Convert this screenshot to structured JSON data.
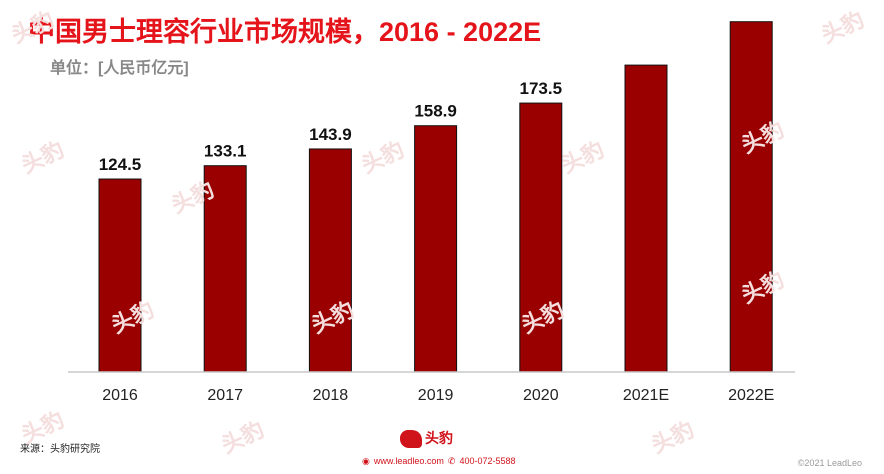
{
  "header": {
    "title": "中国男士理容行业市场规模，2016 - 2022E",
    "unit": "单位：[人民币亿元]"
  },
  "chart_data": {
    "type": "bar",
    "title": "中国男士理容行业市场规模，2016 - 2022E",
    "ylabel": "单位：[人民币亿元]",
    "categories": [
      "2016",
      "2017",
      "2018",
      "2019",
      "2020",
      "2021E",
      "2022E"
    ],
    "values": [
      124.5,
      133.1,
      143.9,
      158.9,
      173.5,
      198,
      226
    ],
    "data_labels": [
      "124.5",
      "133.1",
      "143.9",
      "158.9",
      "173.5",
      "",
      ""
    ],
    "ylim": [
      0,
      240
    ],
    "grid": false,
    "legend": "none",
    "bar_color": "#9a0000"
  },
  "footer": {
    "source": "来源：头豹研究院",
    "logo_text": "头豹",
    "website": "www.leadleo.com",
    "phone": "400-072-5588",
    "copyright": "©2021 LeadLeo"
  },
  "watermark": {
    "text": "头豹"
  }
}
